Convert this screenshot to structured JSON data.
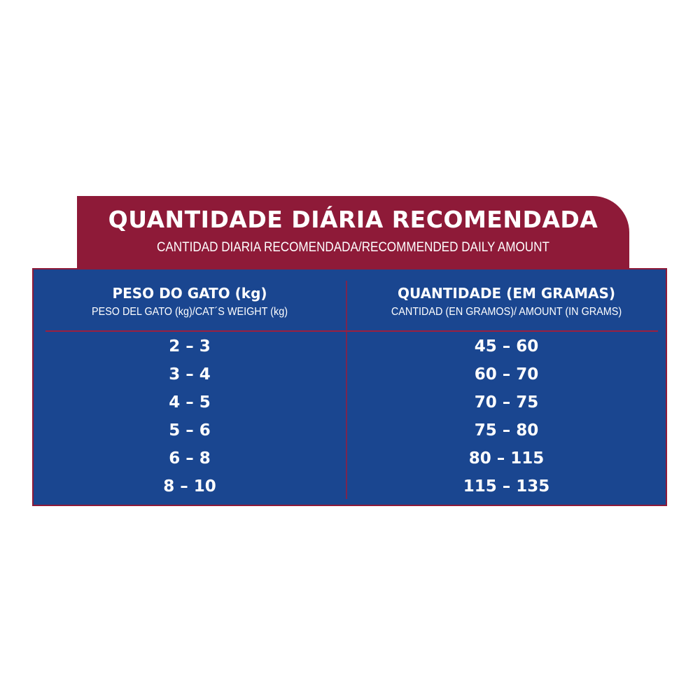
{
  "header": {
    "title": "QUANTIDADE DIÁRIA RECOMENDADA",
    "subtitle": "CANTIDAD DIARIA RECOMENDADA/RECOMMENDED DAILY AMOUNT"
  },
  "colors": {
    "header_bg": "#8e1a38",
    "table_bg": "#1a4690",
    "text": "#ffffff"
  },
  "table": {
    "columns": [
      {
        "title": "PESO DO GATO (kg)",
        "subtitle": "PESO DEL GATO (kg)/CAT´S WEIGHT (kg)"
      },
      {
        "title": "QUANTIDADE (EM GRAMAS)",
        "subtitle": "CANTIDAD (EN GRAMOS)/ AMOUNT (IN GRAMS)"
      }
    ],
    "rows": [
      [
        "2 – 3",
        "45 – 60"
      ],
      [
        "3 – 4",
        "60 – 70"
      ],
      [
        "4 – 5",
        "70 – 75"
      ],
      [
        "5 – 6",
        "75 – 80"
      ],
      [
        "6 – 8",
        "80 – 115"
      ],
      [
        "8 – 10",
        "115 – 135"
      ]
    ]
  }
}
